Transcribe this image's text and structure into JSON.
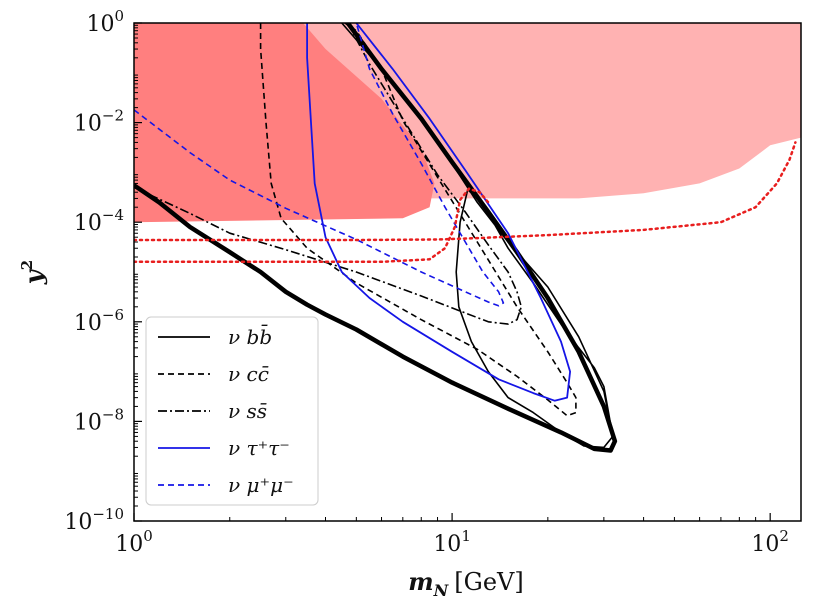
{
  "chart_data": {
    "type": "line",
    "title": "",
    "xlabel": {
      "symbol": "m",
      "subscript": "N",
      "unit": "[GeV]"
    },
    "ylabel": {
      "symbol": "y",
      "superscript": "2"
    },
    "xscale": "log",
    "yscale": "log",
    "xlim": [
      1,
      125
    ],
    "ylim": [
      1e-10,
      1
    ],
    "xticks": [
      {
        "value": 1,
        "base": "10",
        "exp": "0"
      },
      {
        "value": 10,
        "base": "10",
        "exp": "1"
      },
      {
        "value": 100,
        "base": "10",
        "exp": "2"
      }
    ],
    "yticks": [
      {
        "value": 1,
        "base": "10",
        "exp": "0"
      },
      {
        "value": 0.01,
        "base": "10",
        "exp": "−2"
      },
      {
        "value": 0.0001,
        "base": "10",
        "exp": "−4"
      },
      {
        "value": 1e-06,
        "base": "10",
        "exp": "−6"
      },
      {
        "value": 1e-08,
        "base": "10",
        "exp": "−8"
      },
      {
        "value": 1e-10,
        "base": "10",
        "exp": "−10"
      }
    ],
    "legend_position": "bottom-left",
    "excluded_regions": [
      {
        "name": "light-exclusion",
        "color": "#FFB2B2",
        "points": [
          [
            1,
            1
          ],
          [
            125,
            1
          ],
          [
            125,
            0.005
          ],
          [
            100,
            0.0035
          ],
          [
            80,
            0.0012
          ],
          [
            60,
            0.0006
          ],
          [
            40,
            0.00038
          ],
          [
            25,
            0.0003
          ],
          [
            15,
            0.0003
          ],
          [
            1,
            0.0003
          ]
        ]
      },
      {
        "name": "dark-exclusion",
        "color": "#FF7F7F",
        "points": [
          [
            1,
            1
          ],
          [
            3.4,
            1
          ],
          [
            4.0,
            0.3
          ],
          [
            6,
            0.03
          ],
          [
            8,
            0.003
          ],
          [
            8.8,
            0.0006
          ],
          [
            8.5,
            0.0002
          ],
          [
            7,
            0.00012
          ],
          [
            1,
            0.0001
          ]
        ]
      }
    ],
    "curves": [
      {
        "name": "envelope",
        "color": "#000000",
        "style": "solid",
        "width": 4.5,
        "closed": false,
        "points": [
          [
            4.7,
            1
          ],
          [
            6,
            0.12
          ],
          [
            8,
            0.012
          ],
          [
            10,
            0.0016
          ],
          [
            13,
            0.00016
          ],
          [
            16,
            2.5e-05
          ],
          [
            20,
            3e-06
          ],
          [
            25,
            2.5e-07
          ],
          [
            30,
            2e-08
          ],
          [
            32.5,
            4e-09
          ],
          [
            31.5,
            2.6e-09
          ],
          [
            28,
            2.8e-09
          ],
          [
            22,
            6e-09
          ],
          [
            15,
            1.8e-08
          ],
          [
            10,
            6e-08
          ],
          [
            7,
            2e-07
          ],
          [
            5,
            7e-07
          ],
          [
            4,
            1.4e-06
          ],
          [
            3.5,
            2.2e-06
          ],
          [
            3,
            4e-06
          ],
          [
            2.5,
            1e-05
          ],
          [
            2,
            2.5e-05
          ],
          [
            1.5,
            8e-05
          ],
          [
            1.2,
            0.00025
          ],
          [
            1,
            0.00055
          ]
        ]
      },
      {
        "name": "nu-bb",
        "color": "#000000",
        "style": "solid",
        "width": 1.6,
        "closed": false,
        "points": [
          [
            4.5,
            1
          ],
          [
            6,
            0.12
          ],
          [
            8,
            0.012
          ],
          [
            10,
            0.0015
          ],
          [
            12,
            0.00025
          ],
          [
            15,
            4e-05
          ],
          [
            20,
            5e-06
          ],
          [
            25,
            5e-07
          ],
          [
            30,
            4e-08
          ],
          [
            32,
            5e-09
          ],
          [
            30,
            3e-09
          ],
          [
            26,
            3.2e-09
          ],
          [
            22,
            6e-09
          ],
          [
            18,
            1.5e-08
          ],
          [
            15,
            3e-08
          ],
          [
            13,
            1e-07
          ],
          [
            11.5,
            4e-07
          ],
          [
            10.5,
            2e-06
          ],
          [
            10.3,
            1e-05
          ],
          [
            10.6,
            0.0001
          ],
          [
            11.2,
            0.00045
          ],
          [
            12,
            0.0003
          ],
          [
            13,
            0.00015
          ],
          [
            15,
            3e-05
          ],
          [
            18,
            6e-06
          ],
          [
            22,
            9e-07
          ],
          [
            25,
            3e-07
          ],
          [
            28,
            1.2e-07
          ],
          [
            30,
            5e-08
          ],
          [
            32,
            5e-09
          ]
        ]
      },
      {
        "name": "nu-cc",
        "color": "#000000",
        "style": "dashed",
        "width": 1.6,
        "closed": false,
        "points": [
          [
            2.5,
            1
          ],
          [
            2.5,
            0.3
          ],
          [
            2.6,
            0.01
          ],
          [
            2.7,
            0.0006
          ],
          [
            2.9,
            0.00012
          ],
          [
            3.5,
            3e-05
          ],
          [
            5,
            6e-06
          ],
          [
            8,
            1.1e-06
          ],
          [
            12,
            2.8e-07
          ],
          [
            16,
            8e-08
          ],
          [
            20,
            2.7e-08
          ],
          [
            23,
            1.3e-08
          ],
          [
            24.5,
            1.5e-08
          ],
          [
            24.5,
            3e-08
          ],
          [
            23,
            6e-08
          ],
          [
            20,
            2.5e-07
          ],
          [
            16,
            2e-06
          ],
          [
            12,
            4e-05
          ],
          [
            9,
            0.0008
          ],
          [
            7,
            0.011
          ],
          [
            6,
            0.12
          ],
          [
            5,
            0.7
          ],
          [
            4.6,
            1
          ]
        ]
      },
      {
        "name": "dash-dot-lower",
        "color": "#000000",
        "style": "dashdot",
        "width": 1.6,
        "closed": false,
        "points": [
          [
            1,
            0.0005
          ],
          [
            1.5,
            0.00015
          ],
          [
            2,
            6e-05
          ],
          [
            3,
            2.8e-05
          ],
          [
            5,
            1e-05
          ],
          [
            8,
            3.3e-06
          ],
          [
            11,
            1.5e-06
          ],
          [
            13,
            1e-06
          ],
          [
            15,
            9e-07
          ],
          [
            16,
            1.1e-06
          ],
          [
            16.5,
            2e-06
          ],
          [
            16,
            4e-06
          ],
          [
            15,
            1e-05
          ],
          [
            13,
            3.5e-05
          ],
          [
            11,
            0.00016
          ],
          [
            9,
            0.0009
          ],
          [
            7,
            0.012
          ],
          [
            5.5,
            0.15
          ],
          [
            4.7,
            1
          ]
        ]
      },
      {
        "name": "nu-tautau",
        "color": "#1515E6",
        "style": "solid",
        "width": 1.8,
        "closed": false,
        "points": [
          [
            3.5,
            1
          ],
          [
            3.5,
            0.2
          ],
          [
            3.6,
            0.01
          ],
          [
            3.7,
            0.0006
          ],
          [
            4,
            5e-05
          ],
          [
            4.5,
            1e-05
          ],
          [
            5.5,
            3e-06
          ],
          [
            7,
            1e-06
          ],
          [
            10,
            2.5e-07
          ],
          [
            14,
            7e-08
          ],
          [
            18,
            3.7e-08
          ],
          [
            21,
            2.6e-08
          ],
          [
            23,
            3e-08
          ],
          [
            23.5,
            1e-07
          ],
          [
            22,
            4e-07
          ],
          [
            19,
            3e-06
          ],
          [
            15,
            6e-05
          ],
          [
            11,
            0.0011
          ],
          [
            8.5,
            0.012
          ],
          [
            6.5,
            0.12
          ],
          [
            5,
            1
          ]
        ]
      },
      {
        "name": "nu-mumu",
        "color": "#1515E6",
        "style": "dashed",
        "width": 1.6,
        "closed": false,
        "points": [
          [
            1,
            0.018
          ],
          [
            1.5,
            0.0025
          ],
          [
            2,
            0.0007
          ],
          [
            3,
            0.00019
          ],
          [
            5,
            4.5e-05
          ],
          [
            8,
            1e-05
          ],
          [
            11,
            4e-06
          ],
          [
            13,
            2.5e-06
          ],
          [
            14,
            2.1e-06
          ],
          [
            14.5,
            2.4e-06
          ],
          [
            14,
            4e-06
          ],
          [
            12.5,
            1e-05
          ],
          [
            11,
            4e-05
          ],
          [
            9.5,
            0.0002
          ],
          [
            8,
            0.0015
          ],
          [
            6.5,
            0.015
          ],
          [
            5.5,
            0.12
          ],
          [
            5,
            1
          ]
        ]
      },
      {
        "name": "red-dotted-upper",
        "color": "#E81E1E",
        "style": "dotted",
        "width": 2.5,
        "closed": false,
        "points": [
          [
            1,
            4.4e-05
          ],
          [
            5,
            4.4e-05
          ],
          [
            9,
            4.5e-05
          ],
          [
            12,
            4.8e-05
          ],
          [
            20,
            5.5e-05
          ],
          [
            40,
            7e-05
          ],
          [
            70,
            0.0001
          ],
          [
            90,
            0.0002
          ],
          [
            105,
            0.0006
          ],
          [
            115,
            0.0018
          ],
          [
            120,
            0.004
          ]
        ]
      },
      {
        "name": "red-dotted-lower",
        "color": "#E81E1E",
        "style": "dotted",
        "width": 2.5,
        "closed": false,
        "points": [
          [
            1,
            1.6e-05
          ],
          [
            6,
            1.6e-05
          ],
          [
            8.5,
            1.8e-05
          ],
          [
            9.5,
            3e-05
          ],
          [
            10.2,
            8e-05
          ],
          [
            10.6,
            0.00028
          ],
          [
            11.3,
            0.00047
          ],
          [
            12.2,
            0.0004
          ],
          [
            13,
            0.00025
          ]
        ]
      }
    ],
    "legend": [
      {
        "label": "ν bb̄",
        "color": "#000000",
        "style": "solid"
      },
      {
        "label": "ν cc̄",
        "color": "#000000",
        "style": "dashed"
      },
      {
        "label": "ν ss̄",
        "color": "#000000",
        "style": "dashdot"
      },
      {
        "label": "ν τ⁺τ⁻",
        "color": "#1515E6",
        "style": "solid"
      },
      {
        "label": "ν μ⁺μ⁻",
        "color": "#1515E6",
        "style": "dashed"
      }
    ]
  }
}
